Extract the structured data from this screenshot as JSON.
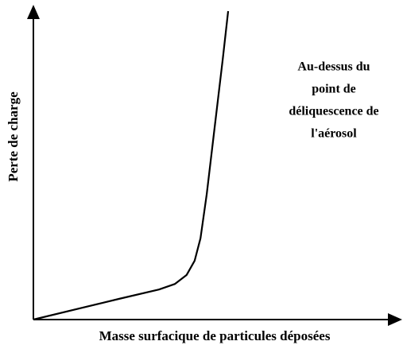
{
  "chart_data": {
    "type": "line",
    "x_label": "Masse surfacique de particules déposées",
    "y_label": "Perte de charge",
    "annotation_lines": [
      "Au-dessus du",
      "point de",
      "déliquescence de",
      "l'aérosol"
    ],
    "x": [
      0,
      12.7,
      23.6,
      34.5,
      38.9,
      42.1,
      44.3,
      45.9,
      47.6,
      49.8,
      52,
      53.5
    ],
    "values": [
      0,
      3.6,
      6.7,
      9.7,
      11.5,
      14.4,
      19,
      26.2,
      40.3,
      62.1,
      83.8,
      99.5
    ],
    "color": "#000000",
    "xlim": [
      0,
      100
    ],
    "ylim": [
      0,
      100
    ]
  }
}
